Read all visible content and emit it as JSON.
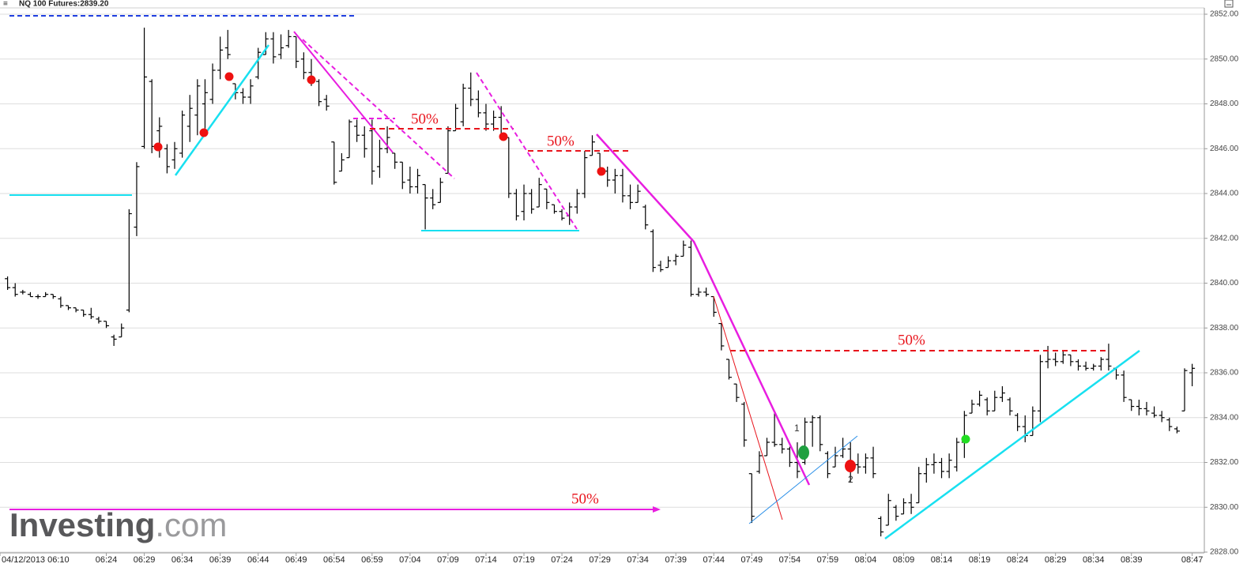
{
  "chart_data": {
    "type": "ohlc",
    "title": "NQ 100 Futures:2839.20",
    "watermark": [
      "Investing",
      ".com"
    ],
    "annotations": [
      "50%",
      "50%",
      "50%",
      "50%",
      "1",
      "2"
    ],
    "color": "#000000",
    "grid": true,
    "xlim": [
      370,
      528.6
    ],
    "ylim": [
      2828,
      2852.3
    ],
    "xticks": [
      {
        "value": 370,
        "label": "04/12/2013 06:10"
      },
      {
        "value": 384,
        "label": "06:24"
      },
      {
        "value": 389,
        "label": "06:29"
      },
      {
        "value": 394,
        "label": "06:34"
      },
      {
        "value": 399,
        "label": "06:39"
      },
      {
        "value": 404,
        "label": "06:44"
      },
      {
        "value": 409,
        "label": "06:49"
      },
      {
        "value": 414,
        "label": "06:54"
      },
      {
        "value": 419,
        "label": "06:59"
      },
      {
        "value": 424,
        "label": "07:04"
      },
      {
        "value": 429,
        "label": "07:09"
      },
      {
        "value": 434,
        "label": "07:14"
      },
      {
        "value": 439,
        "label": "07:19"
      },
      {
        "value": 444,
        "label": "07:24"
      },
      {
        "value": 449,
        "label": "07:29"
      },
      {
        "value": 454,
        "label": "07:34"
      },
      {
        "value": 459,
        "label": "07:39"
      },
      {
        "value": 464,
        "label": "07:44"
      },
      {
        "value": 469,
        "label": "07:49"
      },
      {
        "value": 474,
        "label": "07:54"
      },
      {
        "value": 479,
        "label": "07:59"
      },
      {
        "value": 484,
        "label": "08:04"
      },
      {
        "value": 489,
        "label": "08:09"
      },
      {
        "value": 494,
        "label": "08:14"
      },
      {
        "value": 499,
        "label": "08:19"
      },
      {
        "value": 504,
        "label": "08:24"
      },
      {
        "value": 509,
        "label": "08:29"
      },
      {
        "value": 514,
        "label": "08:34"
      },
      {
        "value": 519,
        "label": "08:39"
      },
      {
        "value": 527,
        "label": "08:47"
      }
    ],
    "yticks": [
      {
        "value": 2828,
        "label": "2828.00"
      },
      {
        "value": 2830,
        "label": "2830.00"
      },
      {
        "value": 2832,
        "label": "2832.00"
      },
      {
        "value": 2834,
        "label": "2834.00"
      },
      {
        "value": 2836,
        "label": "2836.00"
      },
      {
        "value": 2838,
        "label": "2838.00"
      },
      {
        "value": 2840,
        "label": "2840.00"
      },
      {
        "value": 2842,
        "label": "2842.00"
      },
      {
        "value": 2844,
        "label": "2844.00"
      },
      {
        "value": 2846,
        "label": "2846.00"
      },
      {
        "value": 2848,
        "label": "2848.00"
      },
      {
        "value": 2850,
        "label": "2850.00"
      },
      {
        "value": 2852,
        "label": "2852.00"
      }
    ],
    "x": [
      371,
      372,
      373,
      374,
      375,
      376,
      377,
      378,
      379,
      380,
      381,
      382,
      383,
      384,
      385,
      386,
      387,
      388,
      389,
      390,
      391,
      392,
      393,
      394,
      395,
      396,
      397,
      398,
      399,
      400,
      401,
      402,
      403,
      404,
      405,
      406,
      407,
      408,
      409,
      410,
      411,
      412,
      413,
      414,
      415,
      416,
      417,
      418,
      419,
      420,
      421,
      422,
      423,
      424,
      425,
      426,
      427,
      428,
      429,
      430,
      431,
      432,
      433,
      434,
      435,
      436,
      437,
      438,
      439,
      440,
      441,
      442,
      443,
      444,
      445,
      446,
      447,
      448,
      449,
      450,
      451,
      452,
      453,
      454,
      455,
      456,
      457,
      458,
      459,
      460,
      461,
      462,
      463,
      464,
      465,
      466,
      467,
      468,
      469,
      470,
      471,
      472,
      473,
      474,
      475,
      476,
      477,
      478,
      479,
      480,
      481,
      482,
      483,
      484,
      485,
      486,
      487,
      488,
      489,
      490,
      491,
      492,
      493,
      494,
      495,
      496,
      497,
      498,
      499,
      500,
      501,
      502,
      503,
      504,
      505,
      506,
      507,
      508,
      509,
      510,
      511,
      512,
      513,
      514,
      515,
      516,
      517,
      518,
      519,
      520,
      521,
      522,
      523,
      524,
      525,
      526,
      527
    ],
    "open": [
      2840.2,
      2839.8,
      2839.6,
      2839.5,
      2839.4,
      2839.4,
      2839.5,
      2839.3,
      2839.0,
      2838.9,
      2838.8,
      2838.6,
      2838.4,
      2838.3,
      2837.6,
      2837.6,
      2838.8,
      2842.5,
      2846.1,
      2849.0,
      2846.8,
      2846.0,
      2845.5,
      2845.8,
      2847.0,
      2847.5,
      2848.0,
      2848.2,
      2849.5,
      2850.5,
      2848.9,
      2848.5,
      2848.3,
      2849.2,
      2850.2,
      2850.9,
      2850.2,
      2850.6,
      2851.0,
      2850.0,
      2849.4,
      2849.0,
      2848.2,
      2846.3,
      2845.0,
      2845.6,
      2847.0,
      2846.6,
      2846.8,
      2845.2,
      2846.0,
      2845.8,
      2845.4,
      2844.6,
      2844.3,
      2844.4,
      2843.8,
      2843.6,
      2844.9,
      2846.8,
      2847.2,
      2848.7,
      2848.2,
      2847.6,
      2847.1,
      2847.4,
      2846.5,
      2844.0,
      2843.2,
      2844.0,
      2843.4,
      2844.2,
      2843.5,
      2843.2,
      2843.0,
      2843.4,
      2844.0,
      2845.7,
      2845.8,
      2845.0,
      2844.6,
      2844.8,
      2843.9,
      2843.6,
      2843.4,
      2842.3,
      2840.8,
      2840.7,
      2841.0,
      2841.2,
      2841.6,
      2839.5,
      2839.6,
      2839.4,
      2838.2,
      2836.6,
      2835.5,
      2834.6,
      2831.5,
      2831.6,
      2832.3,
      2832.9,
      2832.8,
      2832.6,
      2832.0,
      2832.0,
      2833.8,
      2834.0,
      2832.4,
      2831.8,
      2832.3,
      2832.6,
      2831.9,
      2831.8,
      2832.2,
      2829.5,
      2829.2,
      2830.0,
      2829.7,
      2830.2,
      2830.2,
      2831.5,
      2831.9,
      2832.0,
      2831.6,
      2831.8,
      2832.9,
      2834.2,
      2834.6,
      2834.8,
      2834.3,
      2834.9,
      2834.8,
      2834.1,
      2833.6,
      2833.2,
      2834.3,
      2836.5,
      2836.6,
      2836.5,
      2836.8,
      2836.5,
      2836.3,
      2836.2,
      2836.3,
      2836.6,
      2836.2,
      2835.9,
      2834.8,
      2834.5,
      2834.4,
      2834.2,
      2834.1,
      2833.9,
      2833.5,
      2834.3,
      2836.0
    ],
    "high": [
      2840.3,
      2840.0,
      2839.7,
      2839.6,
      2839.5,
      2839.6,
      2839.5,
      2839.4,
      2839.0,
      2838.9,
      2838.8,
      2838.9,
      2838.5,
      2838.3,
      2837.7,
      2838.2,
      2843.3,
      2845.4,
      2851.4,
      2849.1,
      2847.4,
      2846.2,
      2846.3,
      2847.7,
      2848.4,
      2849.1,
      2849.1,
      2849.8,
      2851.0,
      2851.3,
      2848.9,
      2848.7,
      2849.1,
      2850.5,
      2851.2,
      2851.2,
      2851.1,
      2851.3,
      2851.0,
      2850.3,
      2850.0,
      2849.1,
      2848.4,
      2846.3,
      2845.8,
      2847.3,
      2847.3,
      2847.0,
      2847.3,
      2846.4,
      2847.0,
      2845.8,
      2845.4,
      2845.2,
      2845.1,
      2844.4,
      2844.2,
      2844.7,
      2847.0,
      2848.0,
      2848.9,
      2849.4,
      2848.6,
      2848.0,
      2847.7,
      2847.9,
      2846.5,
      2844.2,
      2844.4,
      2844.2,
      2844.7,
      2844.2,
      2843.5,
      2843.3,
      2843.6,
      2844.2,
      2845.9,
      2846.6,
      2845.8,
      2845.2,
      2845.1,
      2845.1,
      2844.4,
      2844.4,
      2843.5,
      2842.4,
      2841.0,
      2841.2,
      2841.3,
      2841.9,
      2841.9,
      2839.8,
      2839.8,
      2839.4,
      2838.2,
      2836.6,
      2835.5,
      2834.7,
      2831.5,
      2832.5,
      2833.1,
      2834.3,
      2833.1,
      2832.7,
      2832.9,
      2834.0,
      2834.1,
      2834.1,
      2832.5,
      2832.7,
      2833.1,
      2832.9,
      2832.4,
      2832.4,
      2832.7,
      2829.6,
      2830.6,
      2830.1,
      2830.4,
      2830.6,
      2831.8,
      2832.2,
      2832.4,
      2832.2,
      2832.4,
      2833.1,
      2834.3,
      2834.8,
      2835.2,
      2834.9,
      2835.2,
      2835.4,
      2834.9,
      2834.2,
      2834.1,
      2834.5,
      2836.8,
      2837.2,
      2836.9,
      2837.0,
      2836.8,
      2836.6,
      2836.5,
      2836.4,
      2836.7,
      2837.3,
      2836.2,
      2836.1,
      2834.8,
      2834.8,
      2834.7,
      2834.5,
      2834.3,
      2834.0,
      2833.6,
      2836.2,
      2836.4
    ],
    "low": [
      2839.7,
      2839.4,
      2839.5,
      2839.4,
      2839.3,
      2839.4,
      2839.3,
      2838.9,
      2838.8,
      2838.7,
      2838.5,
      2838.4,
      2838.2,
      2838.0,
      2837.2,
      2837.6,
      2838.7,
      2842.1,
      2846.0,
      2845.8,
      2845.6,
      2844.9,
      2845.1,
      2845.6,
      2846.3,
      2846.6,
      2846.9,
      2848.0,
      2849.1,
      2850.0,
      2848.2,
      2848.0,
      2848.0,
      2849.1,
      2850.2,
      2849.8,
      2850.0,
      2850.5,
      2849.6,
      2849.1,
      2848.8,
      2847.9,
      2847.7,
      2844.4,
      2845.0,
      2845.6,
      2846.3,
      2845.6,
      2844.4,
      2844.7,
      2845.8,
      2845.1,
      2844.2,
      2844.0,
      2844.0,
      2842.4,
      2843.3,
      2843.6,
      2844.9,
      2846.8,
      2847.0,
      2847.9,
      2847.4,
      2846.8,
      2846.8,
      2846.5,
      2843.8,
      2842.8,
      2842.8,
      2843.1,
      2843.4,
      2843.3,
      2843.1,
      2842.8,
      2842.6,
      2843.1,
      2843.8,
      2845.7,
      2844.8,
      2844.3,
      2844.0,
      2843.6,
      2843.3,
      2843.6,
      2842.4,
      2840.5,
      2840.5,
      2840.7,
      2840.8,
      2841.2,
      2839.4,
      2839.4,
      2839.4,
      2838.5,
      2837.0,
      2835.7,
      2834.7,
      2832.7,
      2829.3,
      2831.5,
      2832.3,
      2832.7,
      2832.4,
      2831.8,
      2831.3,
      2831.9,
      2832.7,
      2832.5,
      2831.3,
      2831.8,
      2832.2,
      2831.1,
      2831.5,
      2831.5,
      2831.3,
      2828.7,
      2829.2,
      2829.4,
      2829.7,
      2829.7,
      2830.2,
      2831.1,
      2831.5,
      2831.3,
      2831.3,
      2831.6,
      2832.2,
      2834.2,
      2834.5,
      2834.1,
      2834.3,
      2834.7,
      2834.1,
      2833.4,
      2832.9,
      2833.2,
      2833.8,
      2836.2,
      2836.3,
      2836.4,
      2836.3,
      2836.1,
      2836.1,
      2836.1,
      2836.1,
      2836.1,
      2835.7,
      2834.7,
      2834.3,
      2834.1,
      2834.1,
      2834.0,
      2833.8,
      2833.4,
      2833.3,
      2834.3,
      2835.4
    ],
    "close": [
      2839.8,
      2839.5,
      2839.6,
      2839.4,
      2839.4,
      2839.5,
      2839.4,
      2839.0,
      2838.9,
      2838.8,
      2838.6,
      2838.5,
      2838.3,
      2838.1,
      2837.5,
      2838.0,
      2843.1,
      2845.2,
      2849.2,
      2846.1,
      2847.0,
      2845.2,
      2846.0,
      2847.5,
      2847.8,
      2848.8,
      2848.5,
      2849.5,
      2850.4,
      2850.2,
      2848.5,
      2848.3,
      2848.8,
      2850.3,
      2850.9,
      2850.1,
      2850.5,
      2851.0,
      2849.9,
      2849.4,
      2849.0,
      2848.1,
      2847.9,
      2844.5,
      2845.5,
      2847.2,
      2846.6,
      2846.0,
      2845.0,
      2846.0,
      2846.5,
      2845.4,
      2844.5,
      2844.3,
      2844.8,
      2843.8,
      2843.5,
      2844.5,
      2846.8,
      2847.8,
      2848.7,
      2848.2,
      2847.6,
      2847.1,
      2847.4,
      2846.6,
      2844.0,
      2843.0,
      2844.0,
      2843.3,
      2844.4,
      2843.6,
      2843.2,
      2842.9,
      2843.4,
      2844.0,
      2845.6,
      2846.3,
      2845.0,
      2844.6,
      2844.8,
      2843.9,
      2843.6,
      2844.1,
      2842.6,
      2840.7,
      2840.6,
      2841.0,
      2841.2,
      2841.7,
      2839.5,
      2839.6,
      2839.5,
      2838.7,
      2837.2,
      2835.8,
      2834.9,
      2833.0,
      2829.6,
      2832.3,
      2832.9,
      2832.8,
      2832.6,
      2832.0,
      2831.6,
      2833.8,
      2834.0,
      2832.8,
      2831.5,
      2832.3,
      2832.6,
      2831.9,
      2831.8,
      2832.2,
      2831.5,
      2828.9,
      2830.3,
      2829.6,
      2830.2,
      2830.0,
      2831.5,
      2831.9,
      2832.0,
      2831.6,
      2832.1,
      2832.9,
      2834.1,
      2834.6,
      2835.0,
      2834.3,
      2834.9,
      2835.1,
      2834.3,
      2833.6,
      2833.2,
      2834.3,
      2836.5,
      2836.6,
      2836.5,
      2836.8,
      2836.5,
      2836.3,
      2836.2,
      2836.3,
      2836.6,
      2836.3,
      2835.9,
      2834.9,
      2834.5,
      2834.4,
      2834.3,
      2834.1,
      2834.0,
      2833.6,
      2833.4,
      2836.1,
      2836.2
    ]
  }
}
